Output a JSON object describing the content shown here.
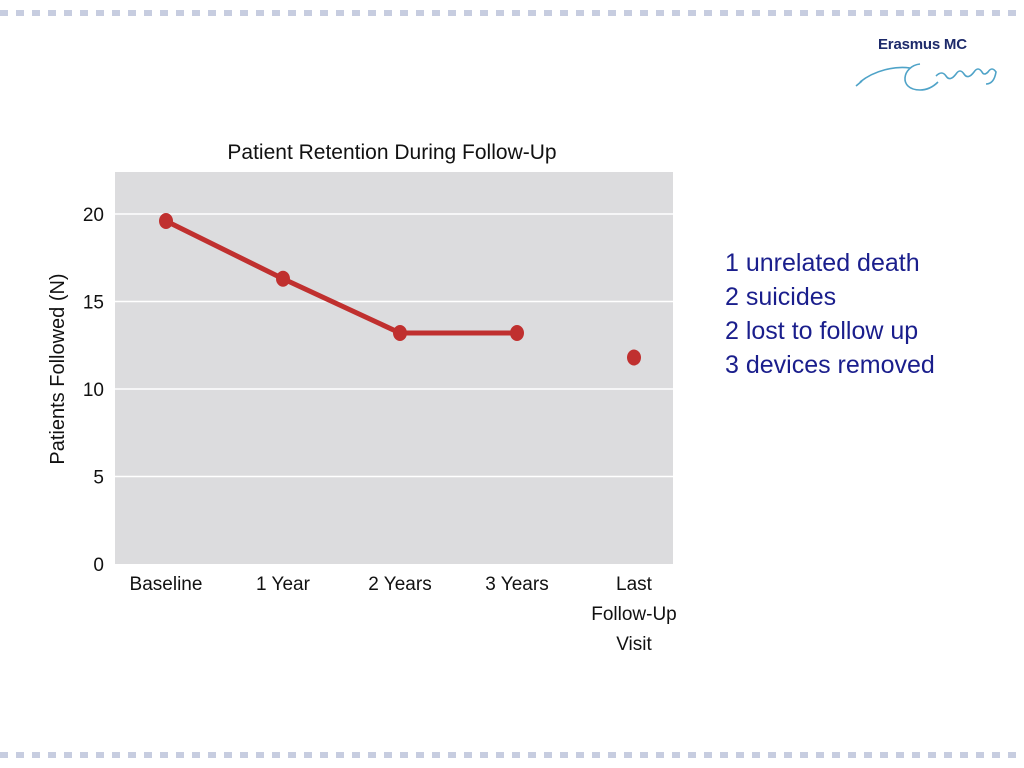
{
  "logo": {
    "name": "Erasmus MC",
    "signature_text": "Erasmus",
    "color": "#1d2a6a"
  },
  "border": {
    "color": "#c7cde0"
  },
  "chart_data": {
    "type": "line",
    "title": "Patient Retention During Follow-Up",
    "xlabel": "",
    "ylabel": "Patients Followed (N)",
    "categories": [
      "Baseline",
      "1 Year",
      "2 Years",
      "3 Years",
      "Last Follow-Up Visit"
    ],
    "category_lines": [
      [
        "Baseline"
      ],
      [
        "1 Year"
      ],
      [
        "2 Years"
      ],
      [
        "3 Years"
      ],
      [
        "Last",
        "Follow-Up",
        "Visit"
      ]
    ],
    "values": [
      19.6,
      16.3,
      13.2,
      13.2,
      11.8
    ],
    "connected": [
      true,
      true,
      true,
      false
    ],
    "ylim": [
      0,
      22
    ],
    "yticks": [
      0,
      5,
      10,
      15,
      20
    ],
    "grid": true,
    "legend": "none",
    "colors": {
      "series": "#c0302f",
      "plot_bg": "#dcdcde",
      "grid": "#ffffff",
      "text": "#111111"
    }
  },
  "notes": [
    "1 unrelated death",
    "2 suicides",
    "2 lost to follow up",
    "3 devices removed"
  ],
  "notes_color": "#1a1e8c"
}
